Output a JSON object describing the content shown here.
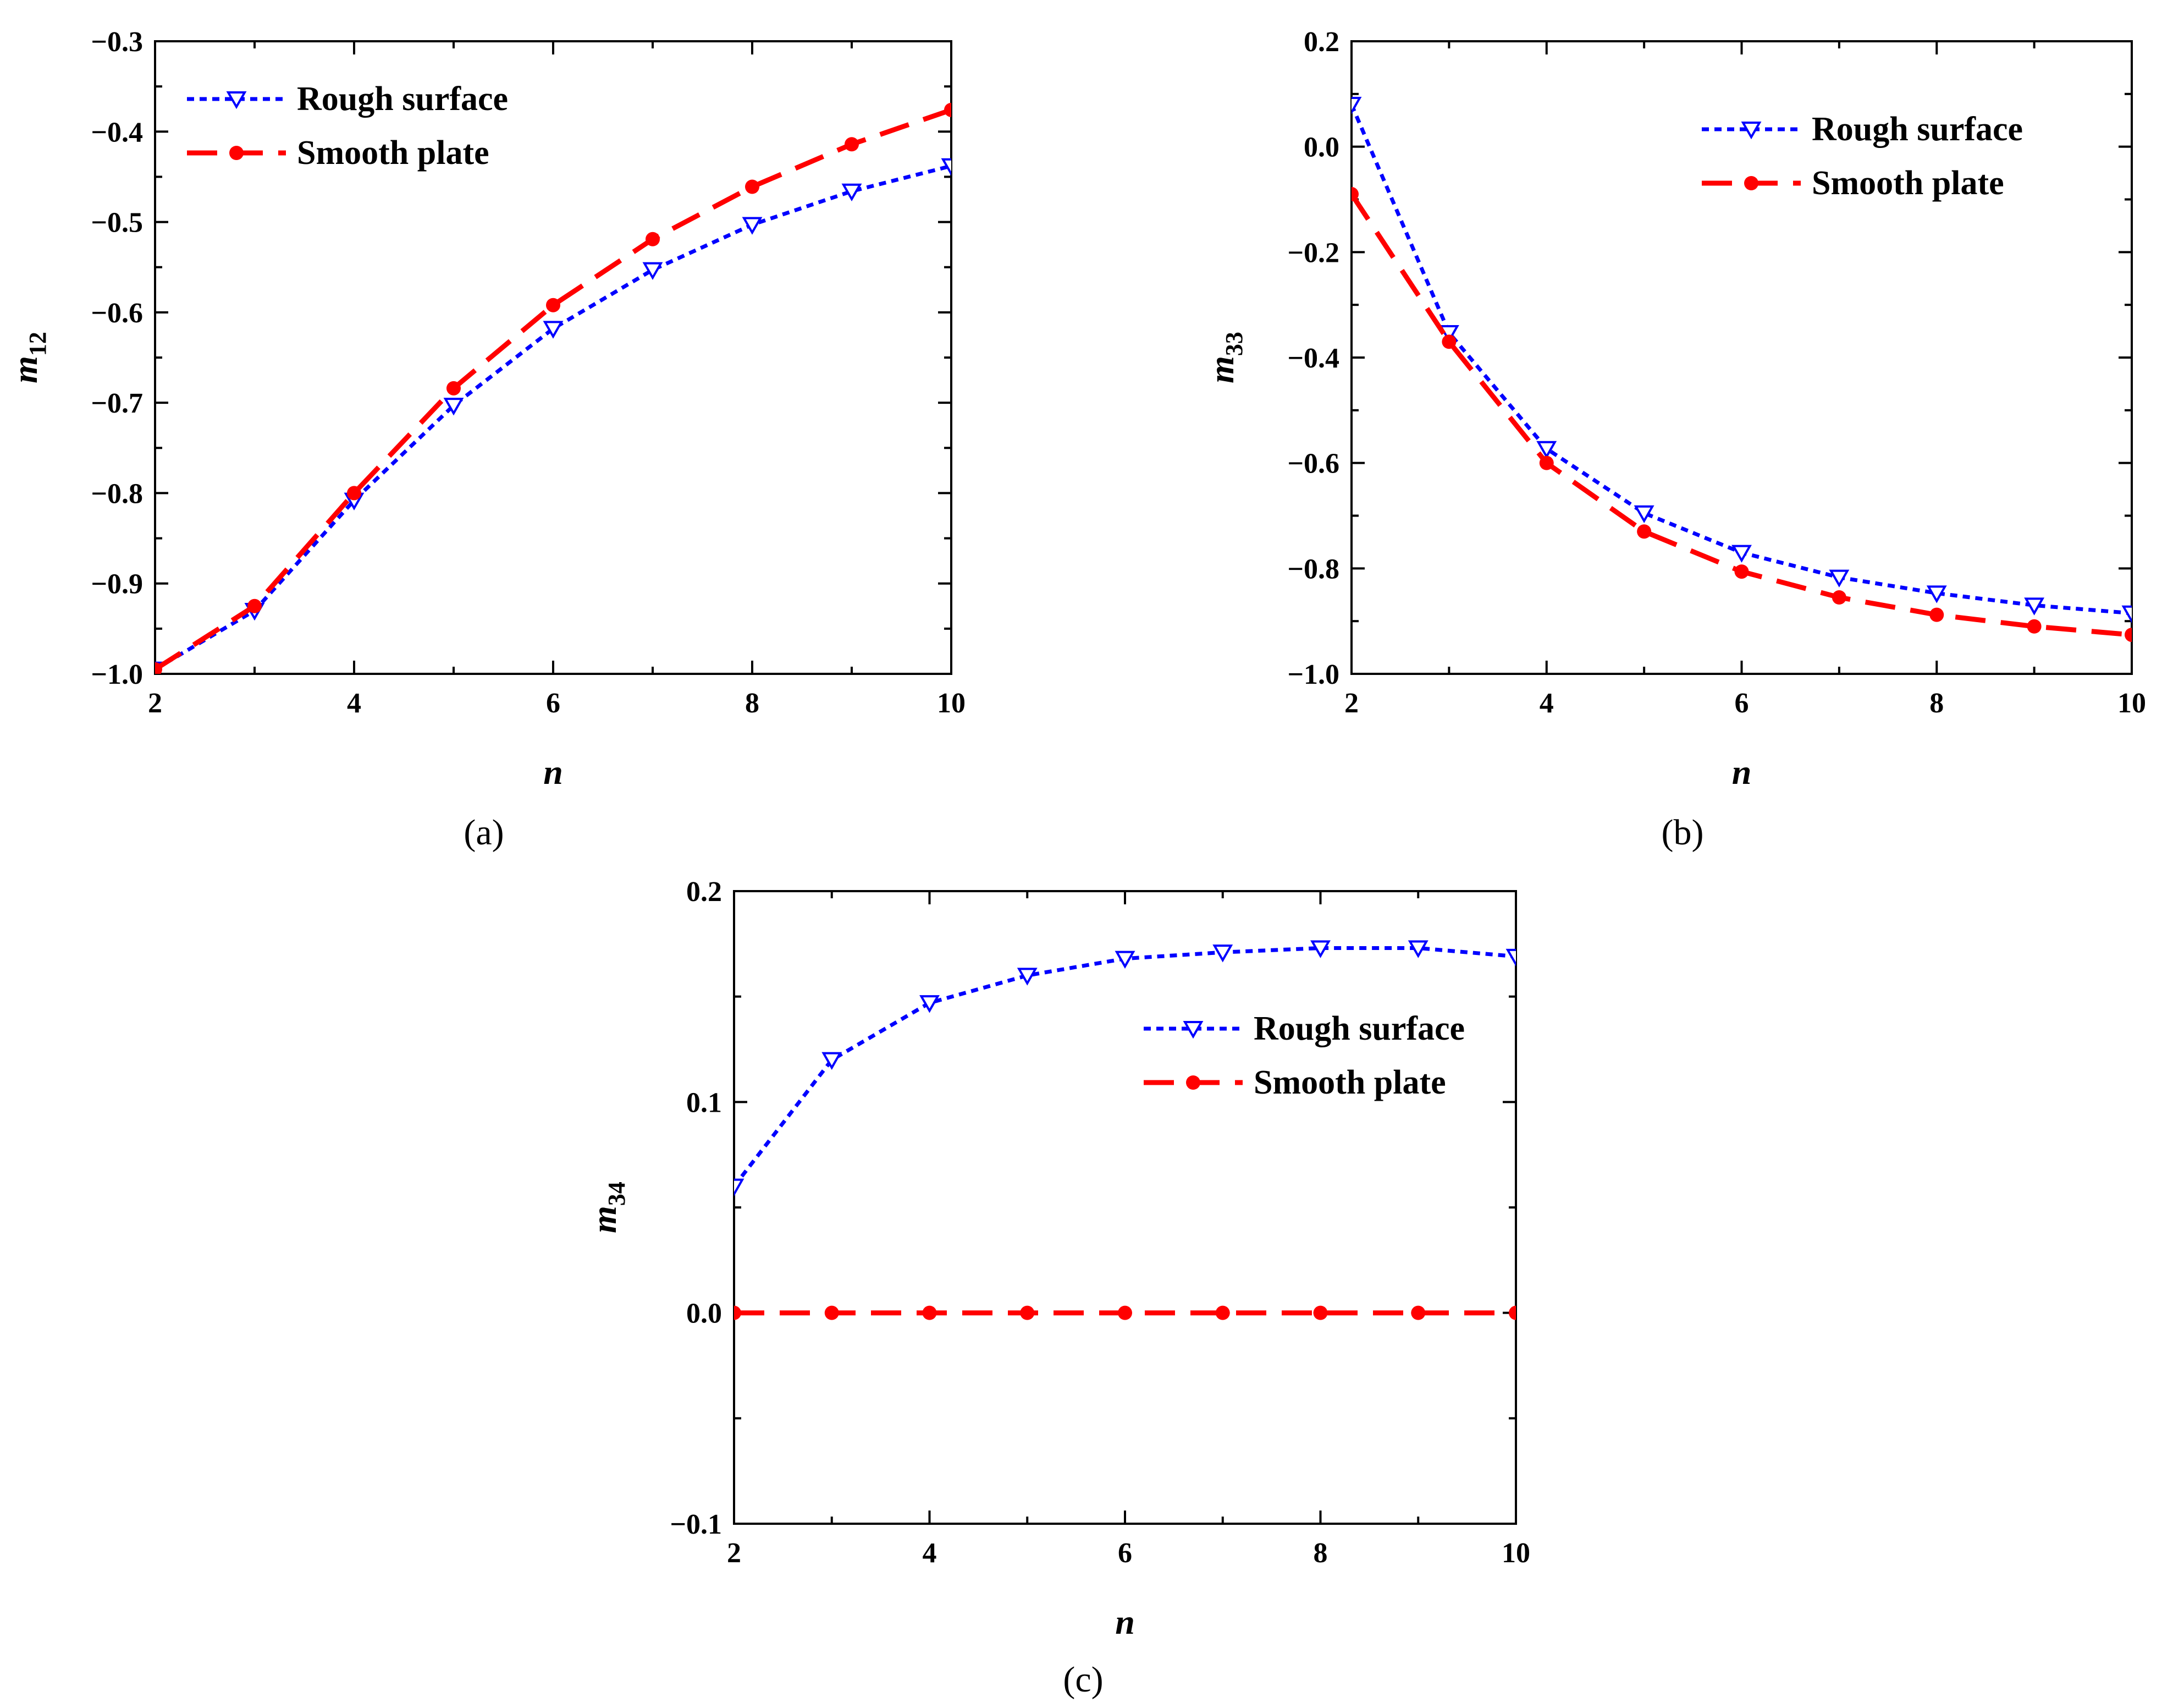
{
  "colors": {
    "rough": "#0000ff",
    "smooth": "#ff0000",
    "axis": "#000000"
  },
  "chart_data": [
    {
      "type": "line",
      "panel_label": "(a)",
      "xlabel": "n",
      "ylabel": {
        "main": "m",
        "sub": "12"
      },
      "xlim": [
        2,
        10
      ],
      "ylim": [
        -1.0,
        -0.3
      ],
      "xticks": [
        2,
        4,
        6,
        8,
        10
      ],
      "xtick_labels": [
        "2",
        "4",
        "6",
        "8",
        "10"
      ],
      "yticks": [
        -1.0,
        -0.9,
        -0.8,
        -0.7,
        -0.6,
        -0.5,
        -0.4,
        -0.3
      ],
      "ytick_labels": [
        "−1.0",
        "−0.9",
        "−0.8",
        "−0.7",
        "−0.6",
        "−0.5",
        "−0.4",
        "−0.3"
      ],
      "legend_position": "top-left",
      "series": [
        {
          "name": "Rough surface",
          "style": "rough",
          "x": [
            2,
            3,
            4,
            5,
            6,
            7,
            8,
            9,
            10
          ],
          "values": [
            -0.995,
            -0.93,
            -0.808,
            -0.703,
            -0.618,
            -0.553,
            -0.503,
            -0.466,
            -0.438
          ]
        },
        {
          "name": "Smooth plate",
          "style": "smooth",
          "x": [
            2,
            3,
            4,
            5,
            6,
            7,
            8,
            9,
            10
          ],
          "values": [
            -0.995,
            -0.925,
            -0.8,
            -0.684,
            -0.592,
            -0.519,
            -0.461,
            -0.414,
            -0.376
          ]
        }
      ]
    },
    {
      "type": "line",
      "panel_label": "(b)",
      "xlabel": "n",
      "ylabel": {
        "main": "m",
        "sub": "33"
      },
      "xlim": [
        2,
        10
      ],
      "ylim": [
        -1.0,
        0.2
      ],
      "xticks": [
        2,
        4,
        6,
        8,
        10
      ],
      "xtick_labels": [
        "2",
        "4",
        "6",
        "8",
        "10"
      ],
      "yticks": [
        -1.0,
        -0.8,
        -0.6,
        -0.4,
        -0.2,
        0.0,
        0.2
      ],
      "ytick_labels": [
        "−1.0",
        "−0.8",
        "−0.6",
        "−0.4",
        "−0.2",
        "0.0",
        "0.2"
      ],
      "legend_position": "top-right",
      "series": [
        {
          "name": "Rough surface",
          "style": "rough",
          "x": [
            2,
            3,
            4,
            5,
            6,
            7,
            8,
            9,
            10
          ],
          "values": [
            0.08,
            -0.353,
            -0.573,
            -0.695,
            -0.77,
            -0.817,
            -0.847,
            -0.87,
            -0.885
          ]
        },
        {
          "name": "Smooth plate",
          "style": "smooth",
          "x": [
            2,
            3,
            4,
            5,
            6,
            7,
            8,
            9,
            10
          ],
          "values": [
            -0.09,
            -0.37,
            -0.6,
            -0.73,
            -0.806,
            -0.855,
            -0.888,
            -0.91,
            -0.926
          ]
        }
      ]
    },
    {
      "type": "line",
      "panel_label": "(c)",
      "xlabel": "n",
      "ylabel": {
        "main": "m",
        "sub": "34"
      },
      "xlim": [
        2,
        10
      ],
      "ylim": [
        -0.1,
        0.2
      ],
      "xticks": [
        2,
        4,
        6,
        8,
        10
      ],
      "xtick_labels": [
        "2",
        "4",
        "6",
        "8",
        "10"
      ],
      "yticks": [
        -0.1,
        0.0,
        0.1,
        0.2
      ],
      "ytick_labels": [
        "−0.1",
        "0.0",
        "0.1",
        "0.2"
      ],
      "legend_position": "top-right",
      "series": [
        {
          "name": "Rough surface",
          "style": "rough",
          "x": [
            2,
            3,
            4,
            5,
            6,
            7,
            8,
            9,
            10
          ],
          "values": [
            0.06,
            0.12,
            0.147,
            0.16,
            0.168,
            0.171,
            0.173,
            0.173,
            0.169
          ]
        },
        {
          "name": "Smooth plate",
          "style": "smooth",
          "x": [
            2,
            3,
            4,
            5,
            6,
            7,
            8,
            9,
            10
          ],
          "values": [
            0,
            0,
            0,
            0,
            0,
            0,
            0,
            0,
            0
          ]
        }
      ]
    }
  ]
}
